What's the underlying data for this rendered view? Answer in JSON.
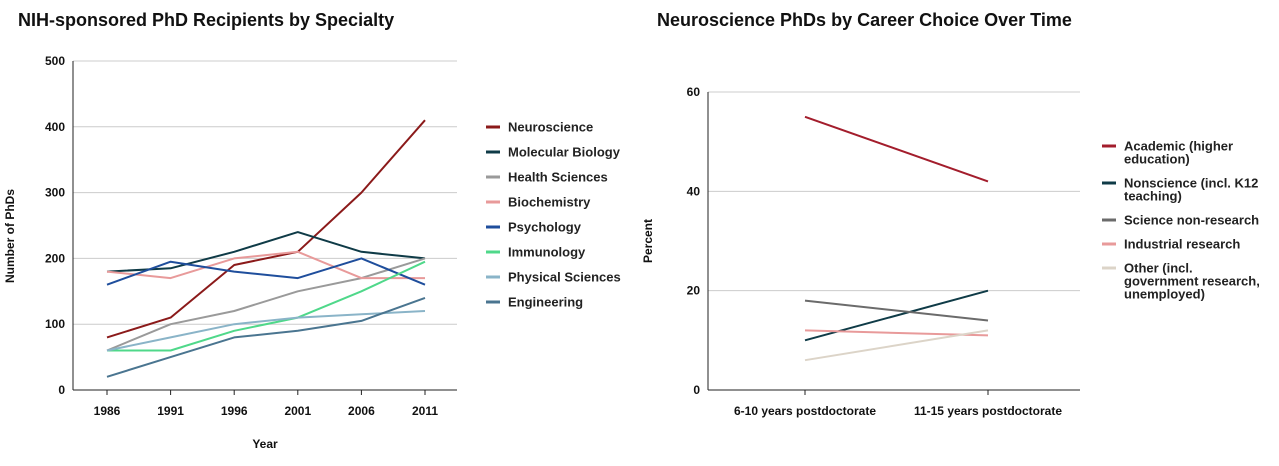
{
  "chart_data": [
    {
      "type": "line",
      "title": "NIH-sponsored PhD Recipients by Specialty",
      "subtitle": "",
      "xlabel": "Year",
      "ylabel": "Number of PhDs",
      "categories": [
        "1986",
        "1991",
        "1996",
        "2001",
        "2006",
        "2011"
      ],
      "ylim": [
        0,
        500
      ],
      "yticks": [
        0,
        100,
        200,
        300,
        400,
        500
      ],
      "grid": true,
      "legend_position": "right",
      "series": [
        {
          "name": "Neuroscience",
          "color": "#8b1a1a",
          "values": [
            80,
            110,
            190,
            210,
            300,
            410
          ]
        },
        {
          "name": "Molecular Biology",
          "color": "#0f3b47",
          "values": [
            180,
            185,
            210,
            240,
            210,
            200
          ]
        },
        {
          "name": "Health Sciences",
          "color": "#9a9a9a",
          "values": [
            60,
            100,
            120,
            150,
            170,
            200
          ]
        },
        {
          "name": "Biochemistry",
          "color": "#e89a9a",
          "values": [
            180,
            170,
            200,
            210,
            170,
            170
          ]
        },
        {
          "name": "Psychology",
          "color": "#1f4e9c",
          "values": [
            160,
            195,
            180,
            170,
            200,
            160
          ]
        },
        {
          "name": "Immunology",
          "color": "#4fd88a",
          "values": [
            60,
            60,
            90,
            110,
            150,
            195
          ]
        },
        {
          "name": "Physical Sciences",
          "color": "#8ab4c8",
          "values": [
            60,
            80,
            100,
            110,
            115,
            120
          ]
        },
        {
          "name": "Engineering",
          "color": "#4a7590",
          "values": [
            20,
            50,
            80,
            90,
            105,
            140
          ]
        }
      ]
    },
    {
      "type": "line",
      "title": "Neuroscience PhDs by Career Choice Over Time",
      "xlabel": "",
      "ylabel": "Percent",
      "categories": [
        "6-10 years postdoctorate",
        "11-15 years postdoctorate"
      ],
      "ylim": [
        0,
        60
      ],
      "yticks": [
        0,
        20,
        40,
        60
      ],
      "grid": true,
      "legend_position": "right",
      "series": [
        {
          "name": "Academic (higher education)",
          "legend_lines": [
            "Academic (higher",
            "education)"
          ],
          "color": "#a31d2c",
          "values": [
            55,
            42
          ]
        },
        {
          "name": "Nonscience (incl. K12 teaching)",
          "legend_lines": [
            "Nonscience (incl. K12",
            "teaching)"
          ],
          "color": "#0f3b47",
          "values": [
            10,
            20
          ]
        },
        {
          "name": "Science non-research",
          "legend_lines": [
            "Science non-research"
          ],
          "color": "#6b6b6b",
          "values": [
            18,
            14
          ]
        },
        {
          "name": "Industrial research",
          "legend_lines": [
            "Industrial research"
          ],
          "color": "#e89a9a",
          "values": [
            12,
            11
          ]
        },
        {
          "name": "Other (incl. government research, unemployed)",
          "legend_lines": [
            "Other (incl.",
            "government research,",
            "unemployed)"
          ],
          "color": "#dcd4c8",
          "values": [
            6,
            12
          ]
        }
      ]
    }
  ]
}
